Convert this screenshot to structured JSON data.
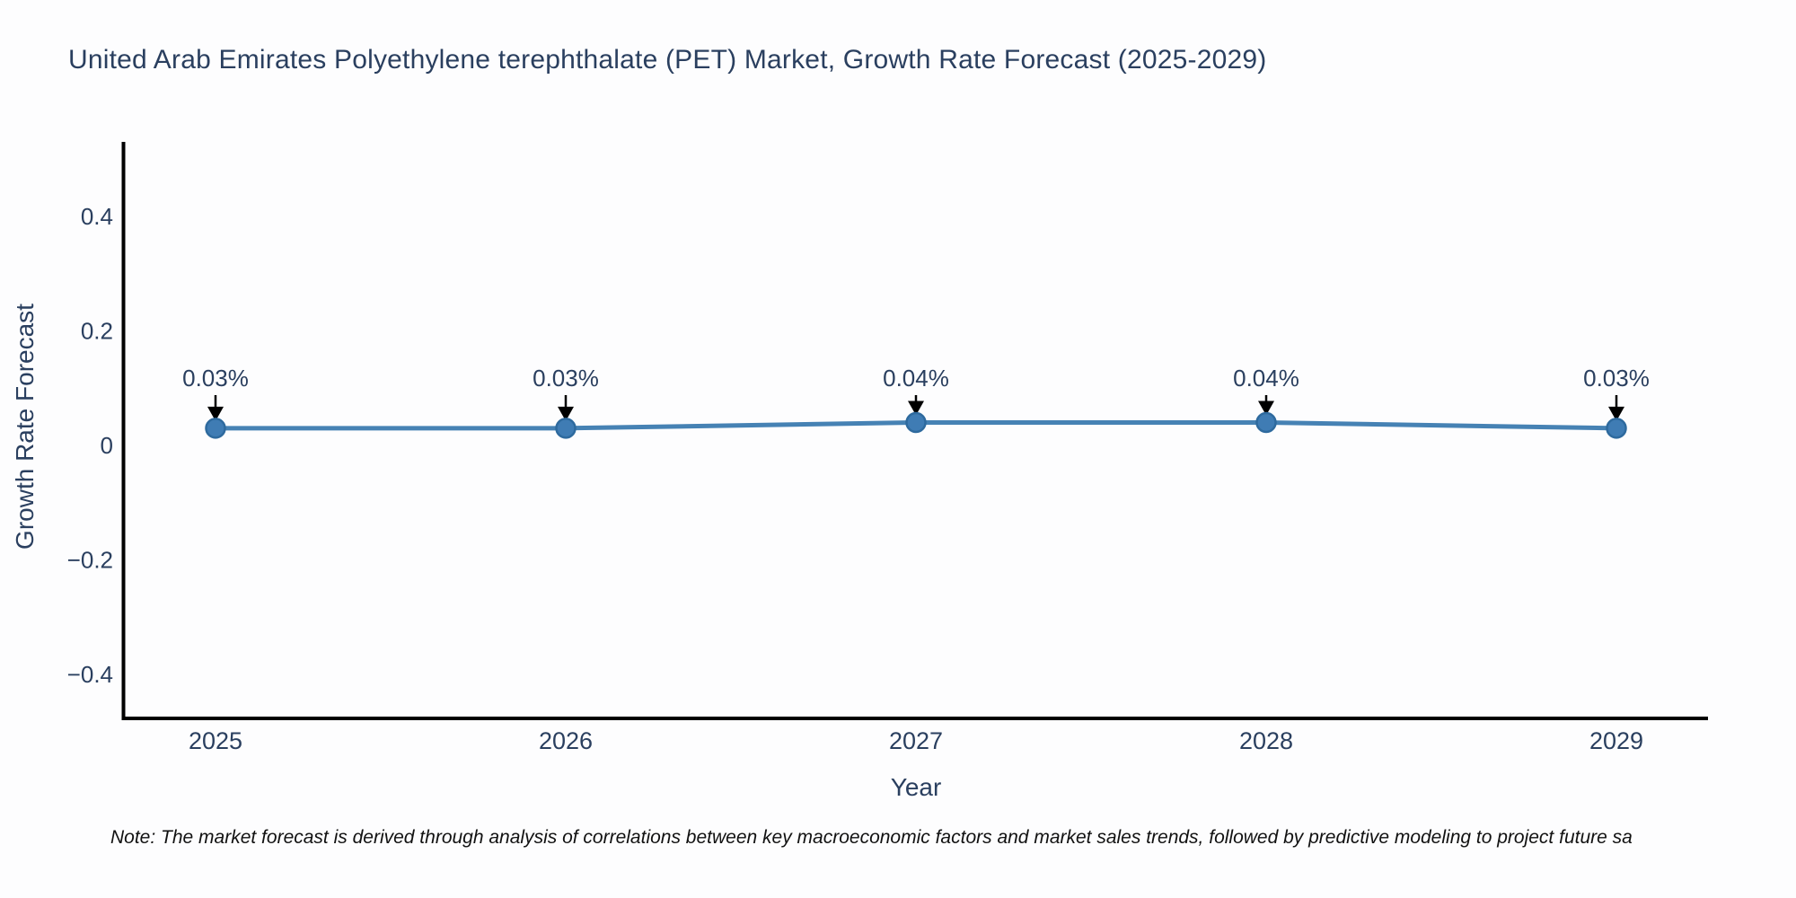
{
  "chart": {
    "title": "United Arab Emirates Polyethylene terephthalate (PET) Market, Growth Rate Forecast (2025-2029)",
    "xlabel": "Year",
    "ylabel": "Growth Rate Forecast",
    "note": "Note: The market forecast is derived through analysis of correlations between key macroeconomic factors and market sales trends, followed by predictive modeling to project future sa"
  },
  "chart_data": {
    "type": "line",
    "title": "United Arab Emirates Polyethylene terephthalate (PET) Market, Growth Rate Forecast (2025-2029)",
    "x": [
      2025,
      2026,
      2027,
      2028,
      2029
    ],
    "values": [
      0.03,
      0.03,
      0.04,
      0.04,
      0.03
    ],
    "point_labels": [
      "0.03%",
      "0.03%",
      "0.04%",
      "0.04%",
      "0.03%"
    ],
    "xlabel": "Year",
    "ylabel": "Growth Rate Forecast",
    "xticks": [
      "2025",
      "2026",
      "2027",
      "2028",
      "2029"
    ],
    "yticks": [
      -0.4,
      -0.2,
      0,
      0.2,
      0.4
    ],
    "ylim": [
      -0.47,
      0.53
    ],
    "grid": false,
    "legend_position": "none",
    "annotation_style": "label-with-down-arrow",
    "colors": {
      "line": "#4682b4",
      "marker_fill": "#3f7cb4",
      "marker_edge": "#2e6a9e",
      "axis_text": "#2a3f5f",
      "annotation_text": "#2a3f5f",
      "arrow": "#000000",
      "spine": "#000000"
    }
  }
}
